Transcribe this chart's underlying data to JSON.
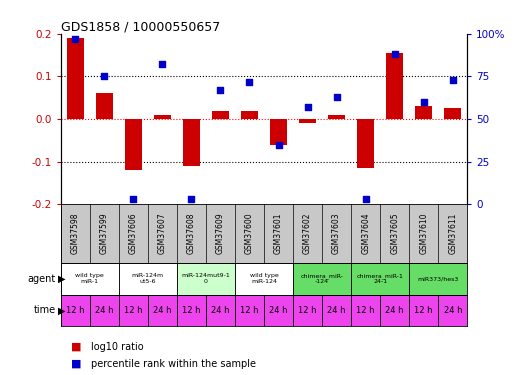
{
  "title": "GDS1858 / 10000550657",
  "samples": [
    "GSM37598",
    "GSM37599",
    "GSM37606",
    "GSM37607",
    "GSM37608",
    "GSM37609",
    "GSM37600",
    "GSM37601",
    "GSM37602",
    "GSM37603",
    "GSM37604",
    "GSM37605",
    "GSM37610",
    "GSM37611"
  ],
  "log10_ratio": [
    0.19,
    0.06,
    -0.12,
    0.01,
    -0.11,
    0.02,
    0.02,
    -0.06,
    -0.01,
    0.01,
    -0.115,
    0.155,
    0.03,
    0.025
  ],
  "percentile_rank": [
    97,
    75,
    3,
    82,
    3,
    67,
    72,
    35,
    57,
    63,
    3,
    88,
    60,
    73
  ],
  "ylim": [
    -0.2,
    0.2
  ],
  "y_ticks_left": [
    -0.2,
    -0.1,
    0.0,
    0.1,
    0.2
  ],
  "y_ticks_right": [
    0,
    25,
    50,
    75,
    100
  ],
  "y_ticks_right_labels": [
    "0",
    "25",
    "50",
    "75",
    "100%"
  ],
  "dotted_lines_black": [
    -0.1,
    0.1
  ],
  "dotted_line_red": 0.0,
  "bar_color": "#cc0000",
  "scatter_color": "#0000cc",
  "agent_groups": [
    {
      "label": "wild type\nmiR-1",
      "start": 0,
      "end": 2,
      "color": "#ffffff"
    },
    {
      "label": "miR-124m\nut5-6",
      "start": 2,
      "end": 4,
      "color": "#ffffff"
    },
    {
      "label": "miR-124mut9-1\n0",
      "start": 4,
      "end": 6,
      "color": "#ccffcc"
    },
    {
      "label": "wild type\nmiR-124",
      "start": 6,
      "end": 8,
      "color": "#ffffff"
    },
    {
      "label": "chimera_miR-\n-124",
      "start": 8,
      "end": 10,
      "color": "#66dd66"
    },
    {
      "label": "chimera_miR-1\n24-1",
      "start": 10,
      "end": 12,
      "color": "#66dd66"
    },
    {
      "label": "miR373/hes3",
      "start": 12,
      "end": 14,
      "color": "#66dd66"
    }
  ],
  "time_labels": [
    "12 h",
    "24 h",
    "12 h",
    "24 h",
    "12 h",
    "24 h",
    "12 h",
    "24 h",
    "12 h",
    "24 h",
    "12 h",
    "24 h",
    "12 h",
    "24 h"
  ],
  "time_colors": [
    "#ee44ee",
    "#ee44ee",
    "#ee44ee",
    "#ee44ee",
    "#ee44ee",
    "#ee44ee",
    "#ee44ee",
    "#ee44ee",
    "#ee44ee",
    "#ee44ee",
    "#ee44ee",
    "#ee44ee",
    "#ee44ee",
    "#ee44ee"
  ],
  "time_text_colors": [
    "#000000",
    "#000000",
    "#000000",
    "#000000",
    "#000000",
    "#000000",
    "#000000",
    "#000000",
    "#000000",
    "#000000",
    "#000000",
    "#000000",
    "#000000",
    "#000000"
  ],
  "sample_bg_color": "#c8c8c8",
  "legend_bar_label": "log10 ratio",
  "legend_scatter_label": "percentile rank within the sample"
}
